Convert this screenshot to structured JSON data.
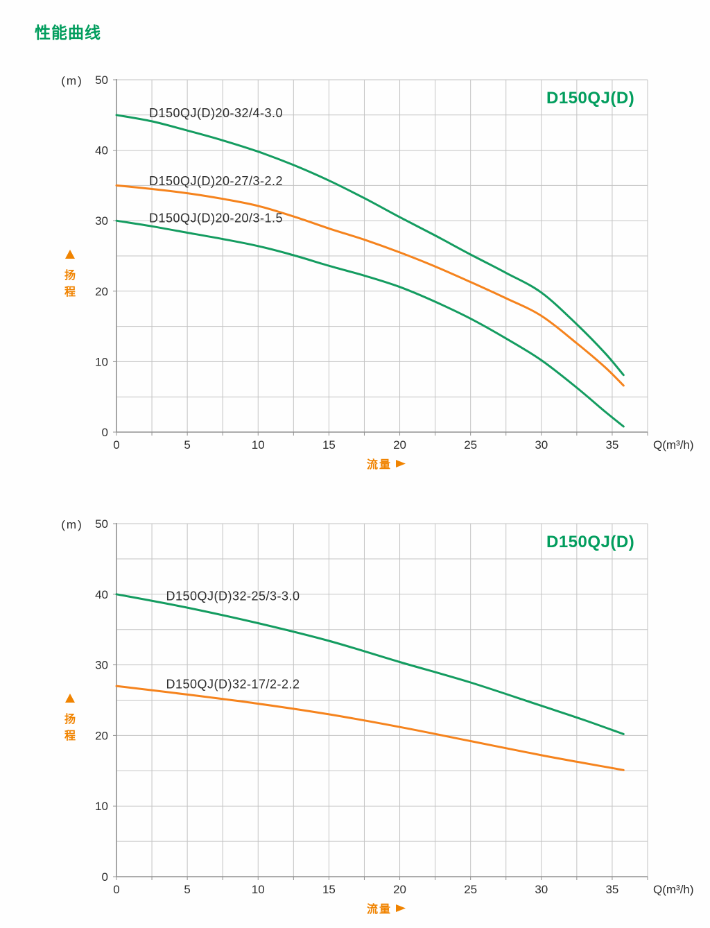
{
  "page": {
    "title": "性能曲线"
  },
  "colors": {
    "title_green": "#019d5d",
    "curve_green": "#149c60",
    "curve_orange": "#f5831d",
    "axis_orange": "#f08300",
    "grid": "#c3c3c3",
    "axis": "#909090",
    "text": "#2d2d2d"
  },
  "chart_data": [
    {
      "type": "line",
      "title": "D150QJ(D)",
      "unit_label": "(m)",
      "xlabel": "Q(m³/h)",
      "ylabel_arrow": "▲",
      "ylabel": "扬程",
      "flow_label": "流量",
      "xlim": [
        0,
        37.5
      ],
      "ylim": [
        0,
        50
      ],
      "x_ticks": [
        0,
        5,
        10,
        15,
        20,
        25,
        30,
        35
      ],
      "y_ticks": [
        50,
        40,
        30,
        20,
        10,
        0
      ],
      "grid_x_step": 2.5,
      "grid_y_step": 5,
      "grid": true,
      "legend_position": "labels-on-curves",
      "series": [
        {
          "name": "D150QJ(D)20-32/4-3.0",
          "color_key": "curve_green",
          "label_x": 2.3,
          "points": [
            [
              0,
              45
            ],
            [
              2.5,
              44.1
            ],
            [
              5,
              42.8
            ],
            [
              7.5,
              41.4
            ],
            [
              10,
              39.8
            ],
            [
              12.5,
              37.9
            ],
            [
              15,
              35.7
            ],
            [
              17.5,
              33.2
            ],
            [
              20,
              30.5
            ],
            [
              22.5,
              27.9
            ],
            [
              25,
              25.2
            ],
            [
              27.5,
              22.6
            ],
            [
              30,
              19.8
            ],
            [
              32.5,
              15.3
            ],
            [
              34.5,
              11.2
            ],
            [
              35.8,
              8.1
            ]
          ]
        },
        {
          "name": "D150QJ(D)20-27/3-2.2",
          "color_key": "curve_orange",
          "label_x": 2.3,
          "points": [
            [
              0,
              35
            ],
            [
              2.5,
              34.5
            ],
            [
              5,
              33.9
            ],
            [
              7.5,
              33.1
            ],
            [
              10,
              32.1
            ],
            [
              12.5,
              30.6
            ],
            [
              15,
              28.9
            ],
            [
              17.5,
              27.3
            ],
            [
              20,
              25.5
            ],
            [
              22.5,
              23.5
            ],
            [
              25,
              21.3
            ],
            [
              27.5,
              19.0
            ],
            [
              30,
              16.5
            ],
            [
              32.5,
              12.6
            ],
            [
              34.5,
              9.2
            ],
            [
              35.8,
              6.6
            ]
          ]
        },
        {
          "name": "D150QJ(D)20-20/3-1.5",
          "color_key": "curve_green",
          "label_x": 2.3,
          "points": [
            [
              0,
              30
            ],
            [
              2.5,
              29.2
            ],
            [
              5,
              28.3
            ],
            [
              7.5,
              27.4
            ],
            [
              10,
              26.4
            ],
            [
              12.5,
              25.1
            ],
            [
              15,
              23.6
            ],
            [
              17.5,
              22.2
            ],
            [
              20,
              20.6
            ],
            [
              22.5,
              18.5
            ],
            [
              25,
              16.1
            ],
            [
              27.5,
              13.3
            ],
            [
              30,
              10.2
            ],
            [
              32.5,
              6.3
            ],
            [
              34.5,
              2.9
            ],
            [
              35.8,
              0.8
            ]
          ]
        }
      ]
    },
    {
      "type": "line",
      "title": "D150QJ(D)",
      "unit_label": "(m)",
      "xlabel": "Q(m³/h)",
      "ylabel_arrow": "▲",
      "ylabel": "扬程",
      "flow_label": "流量",
      "xlim": [
        0,
        37.5
      ],
      "ylim": [
        0,
        50
      ],
      "x_ticks": [
        0,
        5,
        10,
        15,
        20,
        25,
        30,
        35
      ],
      "y_ticks": [
        50,
        40,
        30,
        20,
        10,
        0
      ],
      "grid_x_step": 2.5,
      "grid_y_step": 5,
      "grid": true,
      "legend_position": "labels-on-curves",
      "series": [
        {
          "name": "D150QJ(D)32-25/3-3.0",
          "color_key": "curve_green",
          "label_x": 3.5,
          "points": [
            [
              0,
              40
            ],
            [
              5,
              38.1
            ],
            [
              10,
              35.9
            ],
            [
              15,
              33.4
            ],
            [
              20,
              30.4
            ],
            [
              25,
              27.5
            ],
            [
              30,
              24.2
            ],
            [
              33,
              22.2
            ],
            [
              35.8,
              20.2
            ]
          ]
        },
        {
          "name": "D150QJ(D)32-17/2-2.2",
          "color_key": "curve_orange",
          "label_x": 3.5,
          "points": [
            [
              0,
              27
            ],
            [
              5,
              25.8
            ],
            [
              10,
              24.5
            ],
            [
              15,
              23.0
            ],
            [
              20,
              21.2
            ],
            [
              25,
              19.2
            ],
            [
              30,
              17.2
            ],
            [
              33,
              16.1
            ],
            [
              35.8,
              15.1
            ]
          ]
        }
      ]
    }
  ]
}
